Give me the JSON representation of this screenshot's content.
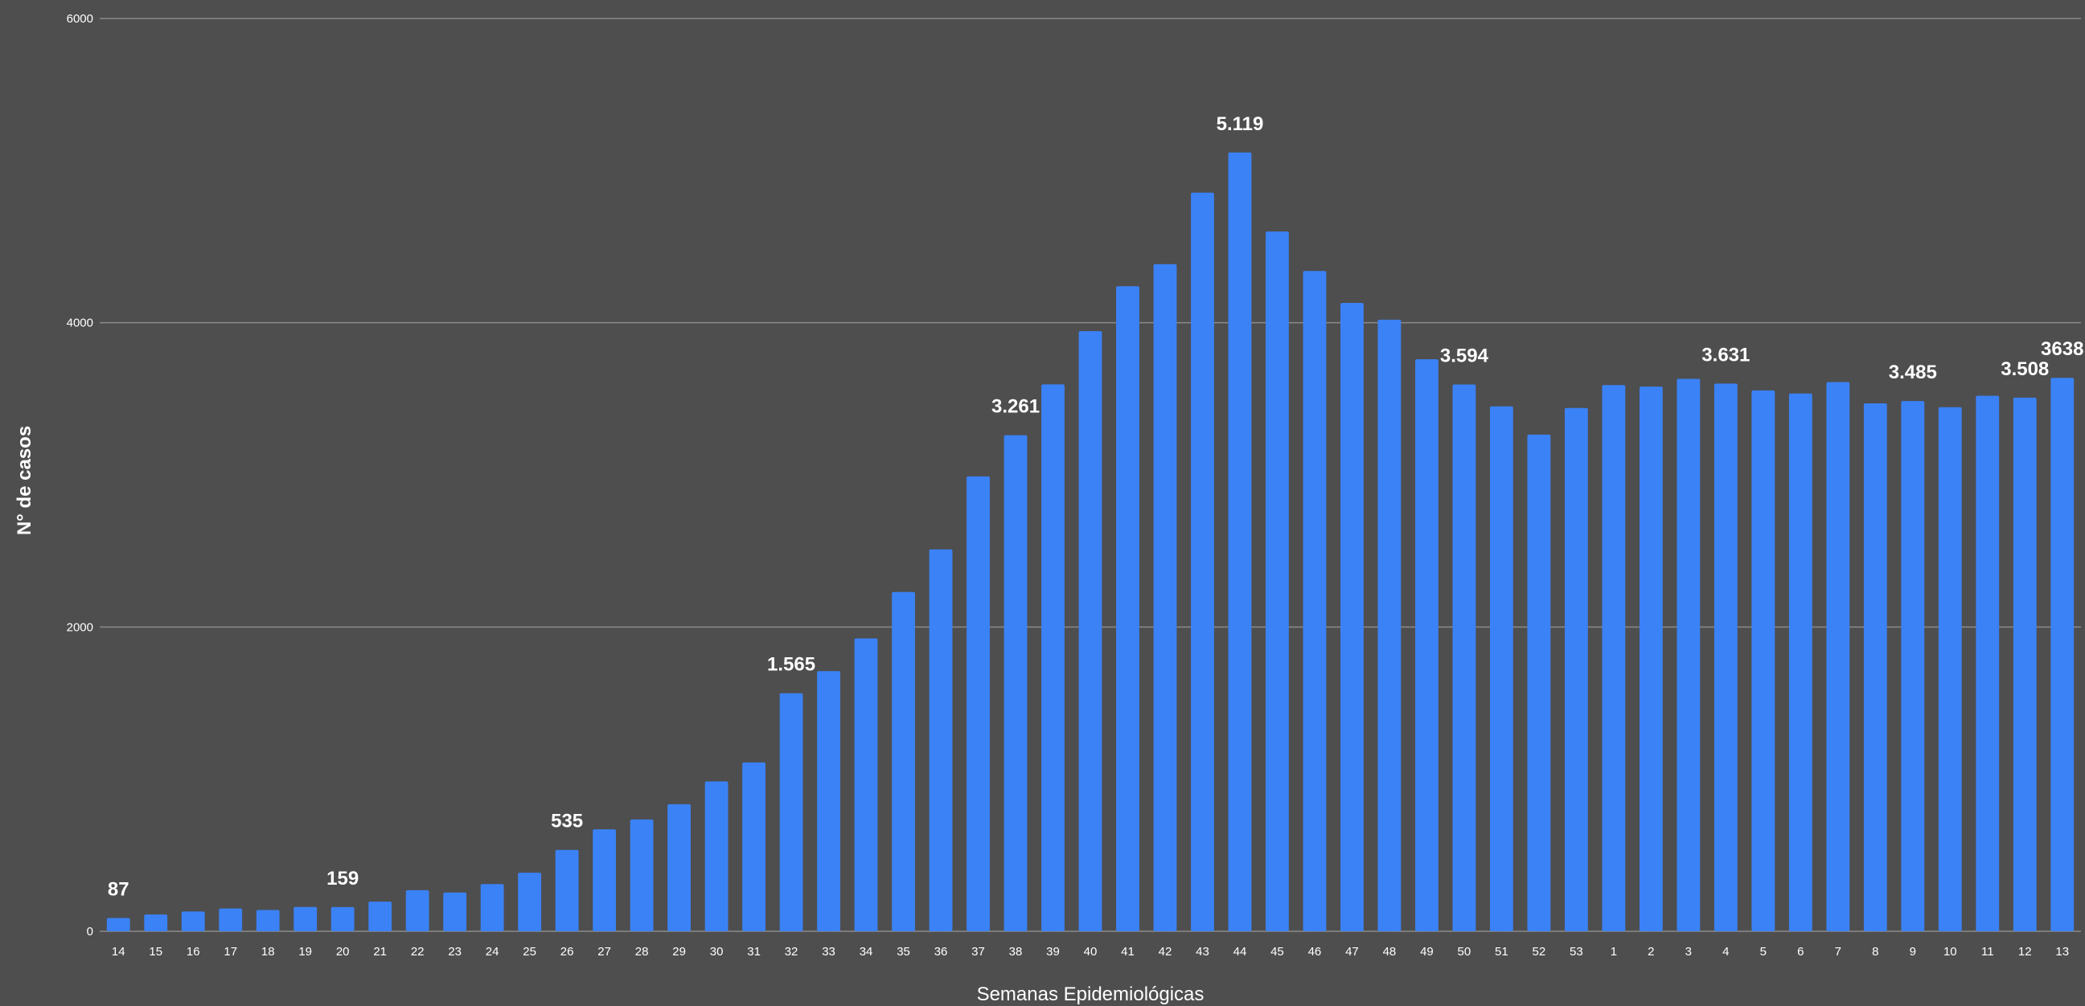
{
  "chart_data": {
    "type": "bar",
    "xlabel": "Semanas Epidemiológicas",
    "ylabel": "N° de casos",
    "ylim": [
      0,
      6000
    ],
    "yticks": [
      "0",
      "2000",
      "4000",
      "6000"
    ],
    "ytick_values": [
      0,
      2000,
      4000,
      6000
    ],
    "grid": true,
    "legend": "none",
    "colors": {
      "background": "#4e4e4e",
      "bar": "#3b82f6",
      "grid": "#8a8a8a",
      "text": "#ffffff"
    },
    "categories": [
      "14",
      "15",
      "16",
      "17",
      "18",
      "19",
      "20",
      "21",
      "22",
      "23",
      "24",
      "25",
      "26",
      "27",
      "28",
      "29",
      "30",
      "31",
      "32",
      "33",
      "34",
      "35",
      "36",
      "37",
      "38",
      "39",
      "40",
      "41",
      "42",
      "43",
      "44",
      "45",
      "46",
      "47",
      "48",
      "49",
      "50",
      "51",
      "52",
      "53",
      "1",
      "2",
      "3",
      "4",
      "5",
      "6",
      "7",
      "8",
      "9",
      "10",
      "11",
      "12",
      "13"
    ],
    "values": [
      87,
      110,
      130,
      150,
      140,
      160,
      159,
      195,
      270,
      255,
      310,
      385,
      535,
      670,
      735,
      835,
      985,
      1110,
      1565,
      1710,
      1925,
      2230,
      2510,
      2990,
      3261,
      3595,
      3945,
      4240,
      4385,
      4855,
      5119,
      4600,
      4340,
      4130,
      4020,
      3760,
      3594,
      3450,
      3265,
      3440,
      3590,
      3580,
      3631,
      3600,
      3555,
      3535,
      3610,
      3470,
      3485,
      3445,
      3520,
      3508,
      3638
    ],
    "data_labels": [
      {
        "category": "14",
        "text": "87"
      },
      {
        "category": "20",
        "text": "159"
      },
      {
        "category": "26",
        "text": "535"
      },
      {
        "category": "32",
        "text": "1.565"
      },
      {
        "category": "38",
        "text": "3.261"
      },
      {
        "category": "44",
        "text": "5.119"
      },
      {
        "category": "50",
        "text": "3.594"
      },
      {
        "category": "4",
        "text": "3.631"
      },
      {
        "category": "9",
        "text": "3.485"
      },
      {
        "category": "12",
        "text": "3.508"
      },
      {
        "category": "13",
        "text": "3638"
      }
    ]
  }
}
